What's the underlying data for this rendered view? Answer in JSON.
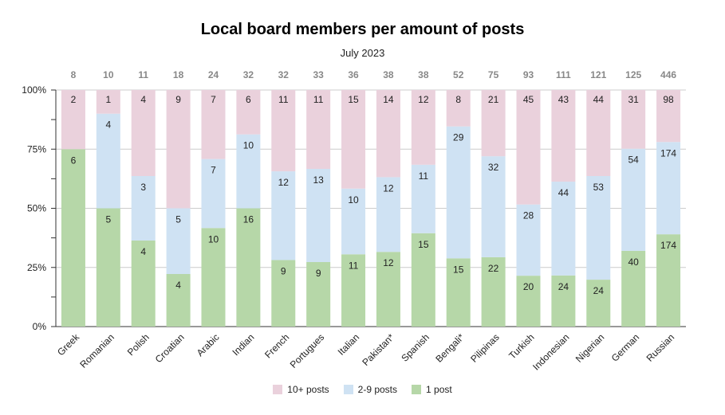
{
  "chart_data": {
    "type": "bar",
    "stacked": "percent",
    "title": "Local board members per amount of posts",
    "subtitle": "July 2023",
    "categories": [
      "Greek",
      "Romanian",
      "Polish",
      "Croatian",
      "Arabic",
      "Indian",
      "French",
      "Portugues",
      "Italian",
      "Pakistan*",
      "Spanish",
      "Bengali*",
      "Pilipinas",
      "Turkish",
      "Indonesian",
      "Nigerian",
      "German",
      "Russian"
    ],
    "totals": [
      8,
      10,
      11,
      18,
      24,
      32,
      32,
      33,
      36,
      38,
      38,
      52,
      75,
      93,
      111,
      121,
      125,
      446
    ],
    "series": [
      {
        "name": "1 post",
        "color": "#b6d7a8",
        "values": [
          6,
          5,
          4,
          4,
          10,
          16,
          9,
          9,
          11,
          12,
          15,
          15,
          22,
          20,
          24,
          24,
          40,
          174
        ]
      },
      {
        "name": "2-9 posts",
        "color": "#cfe2f3",
        "values": [
          0,
          4,
          3,
          5,
          7,
          10,
          12,
          13,
          10,
          12,
          11,
          29,
          32,
          28,
          44,
          53,
          54,
          174
        ]
      },
      {
        "name": "10+ posts",
        "color": "#ead1dc",
        "values": [
          2,
          1,
          4,
          9,
          7,
          6,
          11,
          11,
          15,
          14,
          12,
          8,
          21,
          45,
          43,
          44,
          31,
          98
        ]
      }
    ],
    "yticks": [
      "0%",
      "25%",
      "50%",
      "75%",
      "100%"
    ],
    "ylim": [
      0,
      100
    ],
    "grid": true,
    "legend_position": "bottom"
  }
}
